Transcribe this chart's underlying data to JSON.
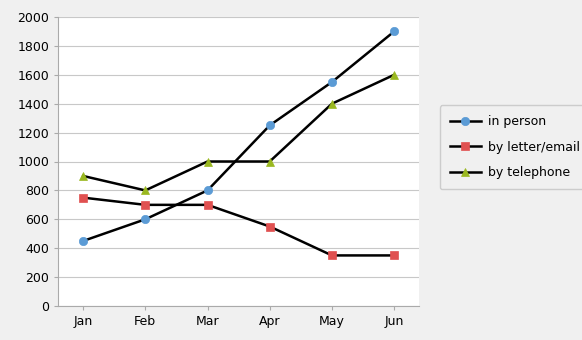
{
  "months": [
    "Jan",
    "Feb",
    "Mar",
    "Apr",
    "May",
    "Jun"
  ],
  "in_person": [
    450,
    600,
    800,
    1250,
    1550,
    1900
  ],
  "by_letter_email": [
    750,
    700,
    700,
    550,
    350,
    350
  ],
  "by_telephone": [
    900,
    800,
    1000,
    1000,
    1400,
    1600
  ],
  "series_labels": [
    "in person",
    "by letter/email",
    "by telephone"
  ],
  "in_person_line_color": "#000000",
  "in_person_marker_color": "#5b9bd5",
  "letter_marker_color": "#e05050",
  "telephone_marker_color": "#9ab820",
  "marker_in_person": "o",
  "marker_letter": "s",
  "marker_telephone": "^",
  "ylim": [
    0,
    2000
  ],
  "yticks": [
    0,
    200,
    400,
    600,
    800,
    1000,
    1200,
    1400,
    1600,
    1800,
    2000
  ],
  "background_color": "#f0f0f0",
  "plot_bg_color": "#ffffff",
  "grid_color": "#c8c8c8",
  "figsize": [
    5.82,
    3.4
  ],
  "dpi": 100
}
